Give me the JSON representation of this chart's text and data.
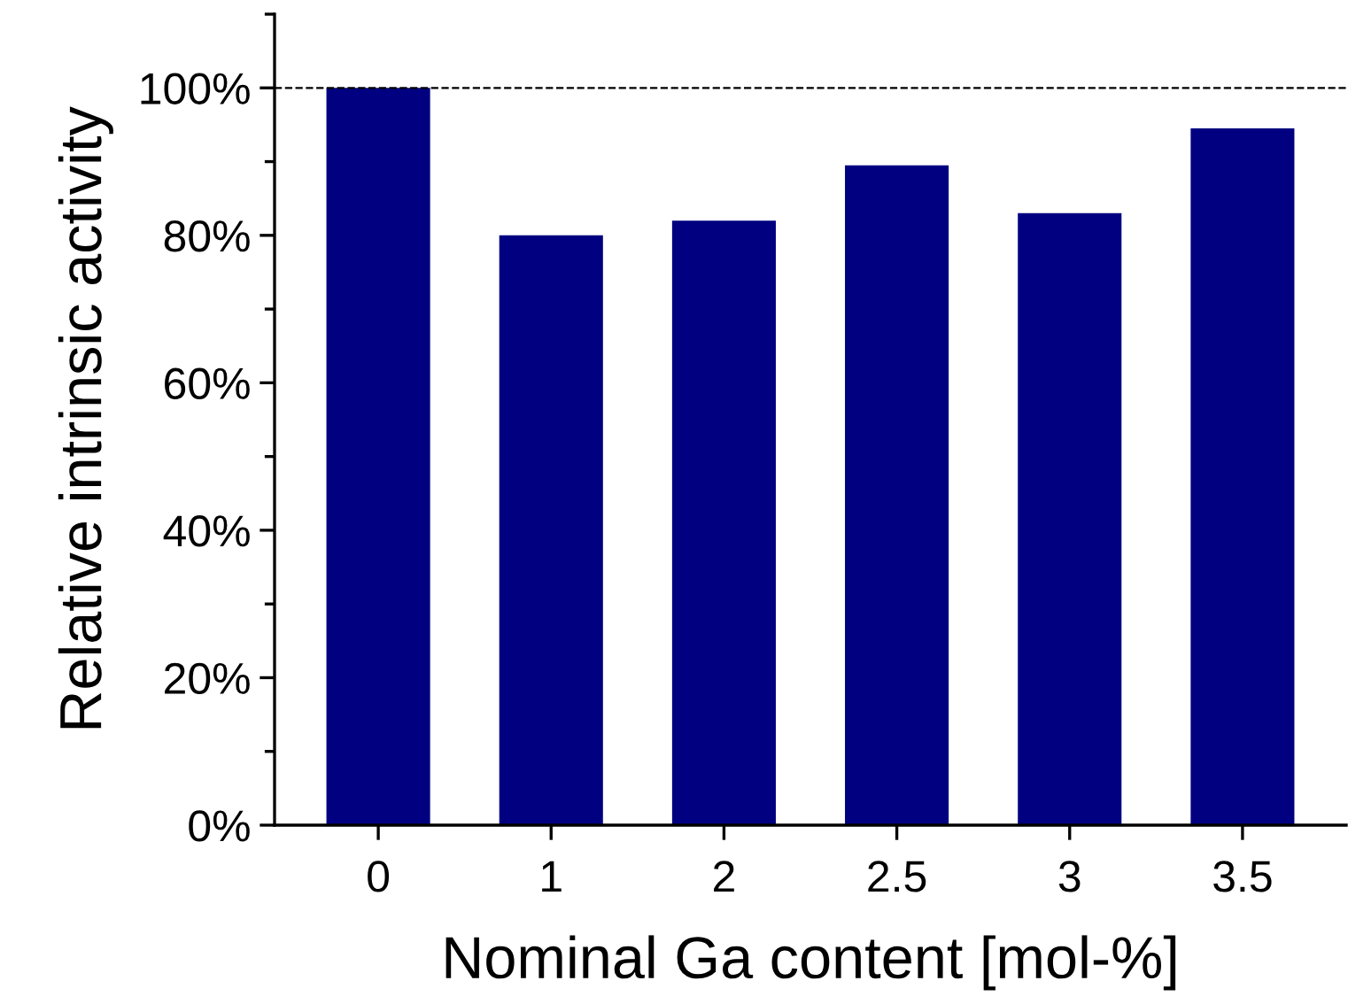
{
  "chart_data": {
    "type": "bar",
    "xlabel": "Nominal Ga content [mol-%]",
    "ylabel": "Relative intrinsic activity",
    "categories": [
      "0",
      "1",
      "2",
      "2.5",
      "3",
      "3.5"
    ],
    "values": [
      100,
      80,
      82,
      89.5,
      83,
      94.5
    ],
    "color": "#000080",
    "ylim": [
      0,
      110
    ],
    "yticks": [
      {
        "value": 0,
        "label": "0%"
      },
      {
        "value": 10,
        "label": null
      },
      {
        "value": 20,
        "label": "20%"
      },
      {
        "value": 30,
        "label": null
      },
      {
        "value": 40,
        "label": "40%"
      },
      {
        "value": 50,
        "label": null
      },
      {
        "value": 60,
        "label": "60%"
      },
      {
        "value": 70,
        "label": null
      },
      {
        "value": 80,
        "label": "80%"
      },
      {
        "value": 90,
        "label": null
      },
      {
        "value": 100,
        "label": "100%"
      },
      {
        "value": 110,
        "label": null
      }
    ],
    "ref_lines": [
      {
        "axis": "y",
        "value": 100,
        "color": "#000000",
        "line_style": "dashed"
      }
    ],
    "grid": false
  }
}
